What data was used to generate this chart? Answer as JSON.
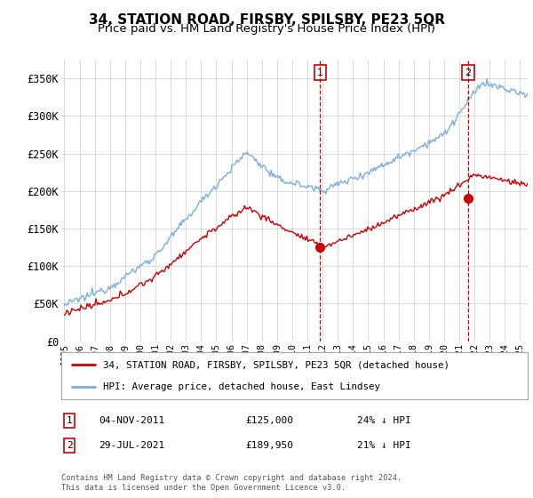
{
  "title": "34, STATION ROAD, FIRSBY, SPILSBY, PE23 5QR",
  "subtitle": "Price paid vs. HM Land Registry's House Price Index (HPI)",
  "ylabel_ticks": [
    "£0",
    "£50K",
    "£100K",
    "£150K",
    "£200K",
    "£250K",
    "£300K",
    "£350K"
  ],
  "ytick_vals": [
    0,
    50000,
    100000,
    150000,
    200000,
    250000,
    300000,
    350000
  ],
  "ylim": [
    0,
    375000
  ],
  "xlim_start": 1994.8,
  "xlim_end": 2025.5,
  "line_red_label": "34, STATION ROAD, FIRSBY, SPILSBY, PE23 5QR (detached house)",
  "line_blue_label": "HPI: Average price, detached house, East Lindsey",
  "transaction1_date": "04-NOV-2011",
  "transaction1_price": 125000,
  "transaction1_hpi": "24% ↓ HPI",
  "transaction1_x": 2011.84,
  "transaction2_date": "29-JUL-2021",
  "transaction2_price": 189950,
  "transaction2_hpi": "21% ↓ HPI",
  "transaction2_x": 2021.57,
  "footer": "Contains HM Land Registry data © Crown copyright and database right 2024.\nThis data is licensed under the Open Government Licence v3.0.",
  "color_red": "#cc0000",
  "color_blue": "#7aade0",
  "color_dashed": "#cc0000",
  "background_white": "#ffffff",
  "title_fontsize": 11,
  "subtitle_fontsize": 9.5
}
